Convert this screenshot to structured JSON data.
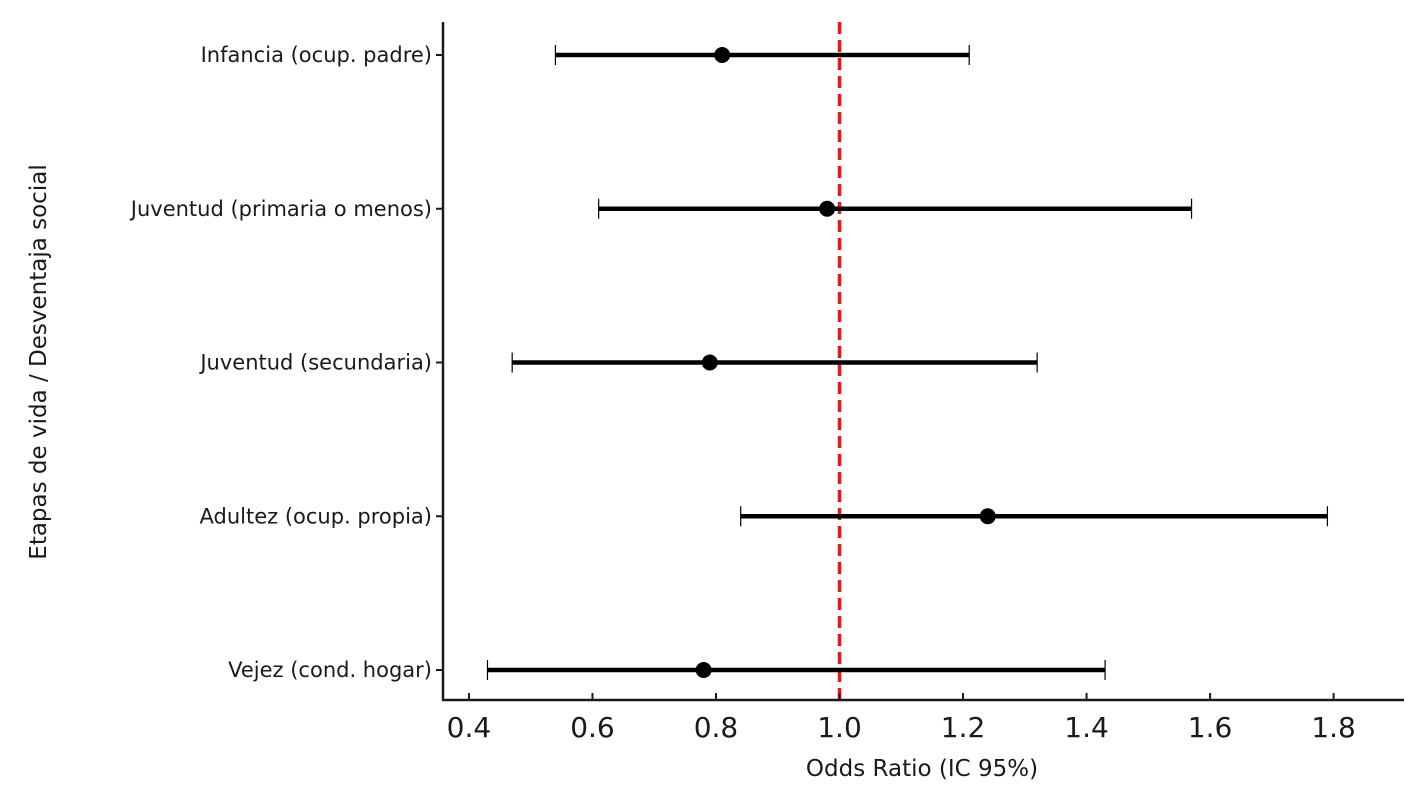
{
  "chart_data": {
    "type": "forest",
    "title": "",
    "xlabel": "Odds Ratio (IC 95%)",
    "ylabel": "Etapas de vida / Desventaja social",
    "xlim": [
      0.358,
      1.914
    ],
    "xticks": [
      0.4,
      0.6,
      0.8,
      1.0,
      1.2,
      1.4,
      1.6,
      1.8
    ],
    "xtick_labels": [
      "0.4",
      "0.6",
      "0.8",
      "1.0",
      "1.2",
      "1.4",
      "1.6",
      "1.8"
    ],
    "reference_line": {
      "x": 1.0,
      "style": "dashed",
      "color": "#e31a1c"
    },
    "grid": false,
    "categories": [
      "Infancia (ocup. padre)",
      "Juventud (primaria o menos)",
      "Juventud (secundaria)",
      "Adultez (ocup. propia)",
      "Vejez (cond. hogar)"
    ],
    "or": [
      0.81,
      0.98,
      0.79,
      1.24,
      0.78
    ],
    "ci_low": [
      0.54,
      0.61,
      0.47,
      0.84,
      0.43
    ],
    "ci_high": [
      1.21,
      1.57,
      1.32,
      1.79,
      1.43
    ],
    "colors": {
      "point": "#000000",
      "line": "#000000",
      "axis": "#1a1a1a"
    }
  }
}
